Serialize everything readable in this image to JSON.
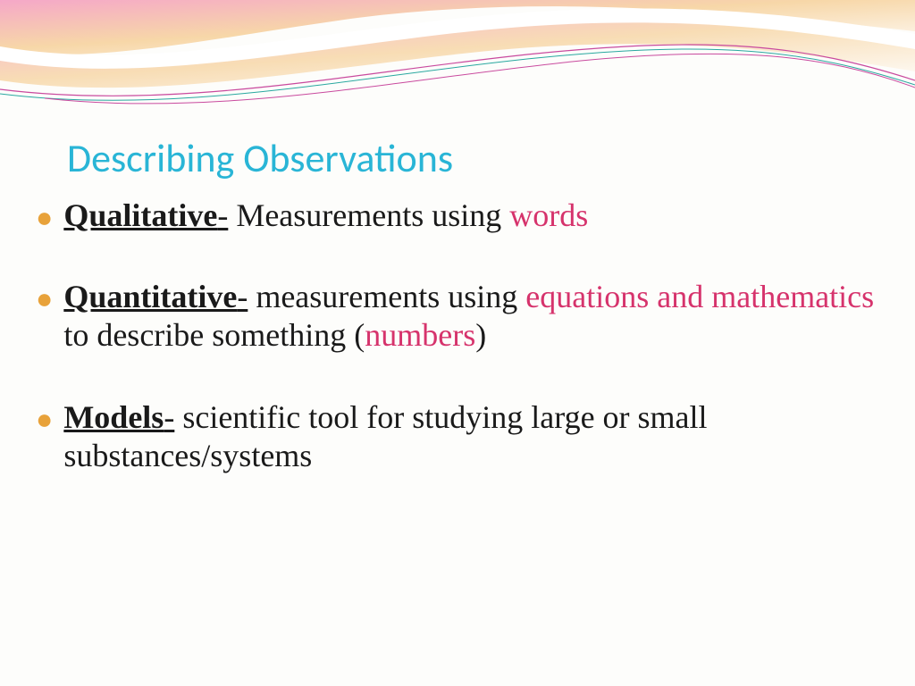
{
  "title": {
    "text": "Describing Observations",
    "color": "#29b5d6",
    "fontsize": 44
  },
  "bullet_color": "#e8a23a",
  "text_color": "#1a1a1a",
  "highlight_color": "#d6336c",
  "body_fontsize": 36,
  "background_color": "#fdfdfb",
  "swoosh": {
    "gradient_start": "#f5a8c8",
    "gradient_mid": "#f7d7a8",
    "gradient_end": "#ffffff",
    "accent1": "#c94a9e",
    "accent2": "#2aa8a0",
    "accent3": "#ffffff"
  },
  "bullets": [
    {
      "term": "Qualitative",
      "dash": "-",
      "segments": [
        {
          "text": " Measurements using ",
          "highlight": false
        },
        {
          "text": "words",
          "highlight": true
        }
      ]
    },
    {
      "term": "Quantitative",
      "dash": "-",
      "segments": [
        {
          "text": " measurements using ",
          "highlight": false
        },
        {
          "text": "equations and mathematics",
          "highlight": true
        },
        {
          "text": " to describe something (",
          "highlight": false
        },
        {
          "text": "numbers",
          "highlight": true
        },
        {
          "text": ")",
          "highlight": false
        }
      ]
    },
    {
      "term": "Models",
      "dash": "-",
      "segments": [
        {
          "text": " scientific tool for studying large or small substances/systems",
          "highlight": false
        }
      ]
    }
  ]
}
